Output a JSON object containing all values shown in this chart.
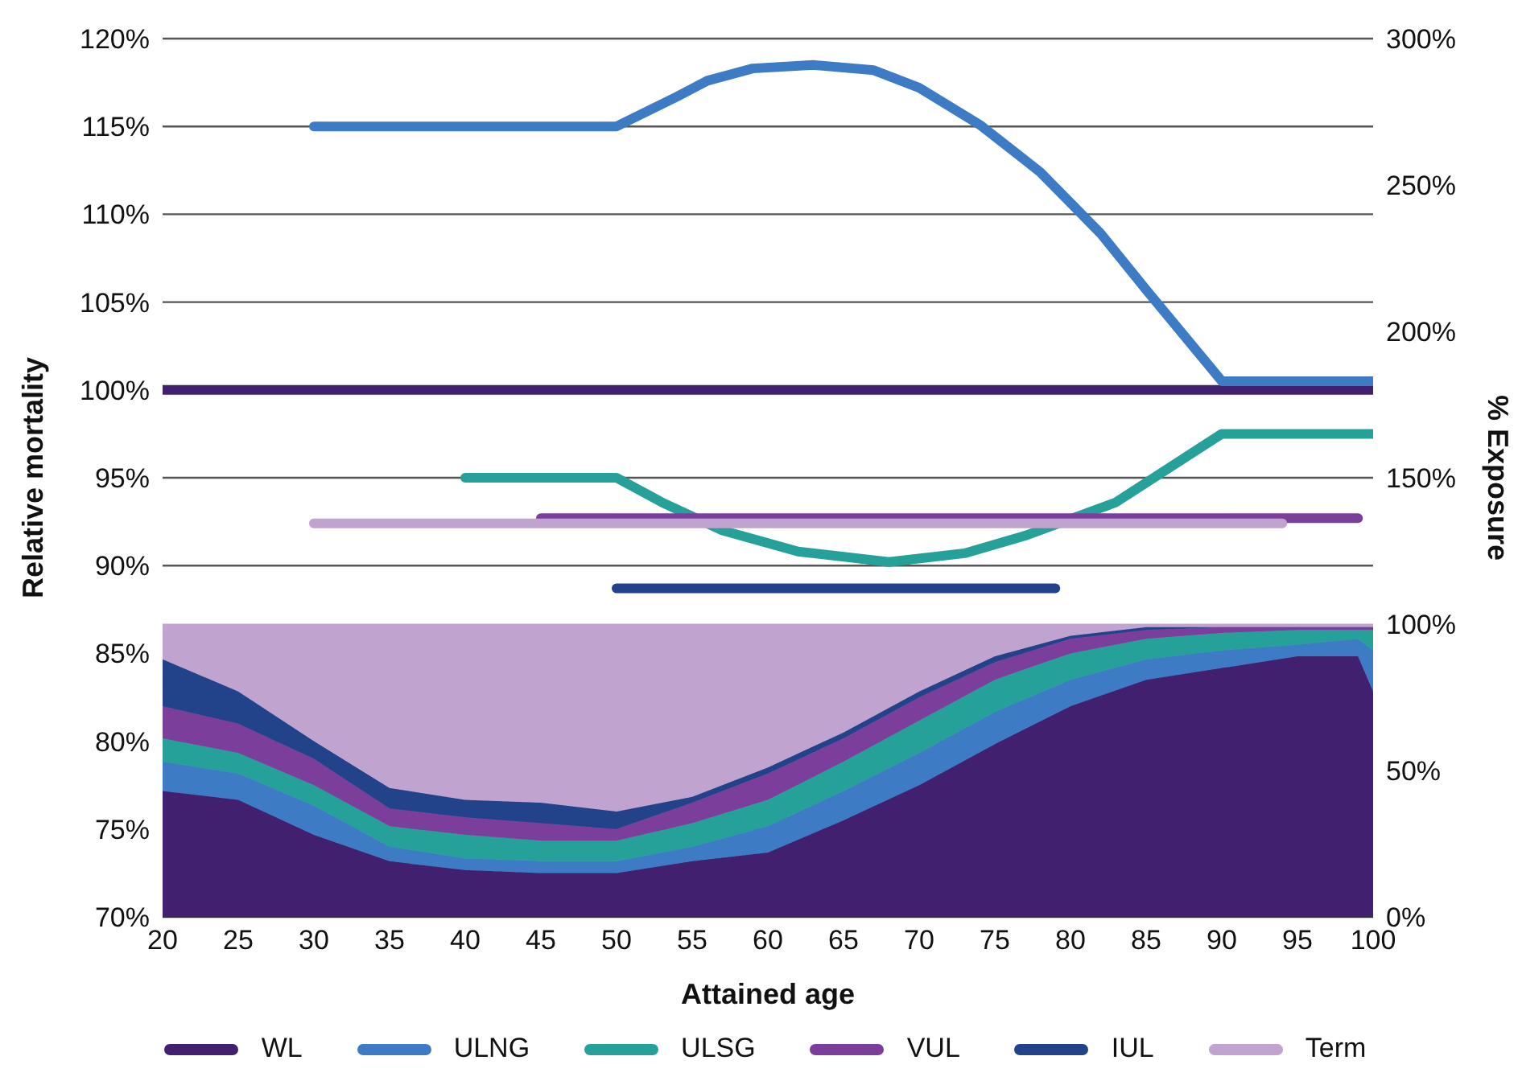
{
  "chart_data": {
    "type": "line",
    "xlabel": "Attained age",
    "ylabel": "Relative mortality",
    "y2label": "% Exposure",
    "x": [
      20,
      25,
      30,
      35,
      40,
      45,
      50,
      55,
      60,
      65,
      70,
      75,
      80,
      85,
      90,
      95,
      99,
      100
    ],
    "xlim": [
      20,
      100
    ],
    "xticks": [
      20,
      25,
      30,
      35,
      40,
      45,
      50,
      55,
      60,
      65,
      70,
      75,
      80,
      85,
      90,
      95,
      100
    ],
    "ylim": [
      70,
      120
    ],
    "yticks": [
      {
        "value": 70,
        "label": "70%"
      },
      {
        "value": 75,
        "label": "75%"
      },
      {
        "value": 80,
        "label": "80%"
      },
      {
        "value": 85,
        "label": "85%"
      },
      {
        "value": 90,
        "label": "90%"
      },
      {
        "value": 95,
        "label": "95%"
      },
      {
        "value": 100,
        "label": "100%"
      },
      {
        "value": 105,
        "label": "105%"
      },
      {
        "value": 110,
        "label": "110%"
      },
      {
        "value": 115,
        "label": "115%"
      },
      {
        "value": 120,
        "label": "120%"
      }
    ],
    "y2lim": [
      0,
      300
    ],
    "y2ticks": [
      {
        "value": 0,
        "label": "0%"
      },
      {
        "value": 50,
        "label": "50%"
      },
      {
        "value": 100,
        "label": "100%"
      },
      {
        "value": 150,
        "label": "150%"
      },
      {
        "value": 200,
        "label": "200%"
      },
      {
        "value": 250,
        "label": "250%"
      },
      {
        "value": 300,
        "label": "300%"
      }
    ],
    "stacked": true,
    "grid": "y",
    "legend": "bottom",
    "marker": "none",
    "line_style": "solid",
    "series": [
      {
        "type": "area",
        "axis": "y2",
        "color": "#41206f",
        "values": [
          43,
          40,
          28,
          19,
          16,
          15,
          15,
          19,
          22,
          33,
          45,
          59,
          72,
          81,
          85,
          89,
          89,
          77
        ]
      },
      {
        "type": "area",
        "axis": "y2",
        "color": "#3d7cc4",
        "values": [
          10,
          9,
          10,
          5,
          4,
          4,
          4,
          5,
          9,
          10,
          11,
          11,
          9,
          7,
          6,
          4,
          6,
          14
        ]
      },
      {
        "type": "area",
        "axis": "y2",
        "color": "#26a199",
        "values": [
          8,
          7,
          7,
          7,
          8,
          7,
          7,
          8,
          9,
          10,
          11,
          11,
          9,
          7,
          6,
          5,
          3,
          7
        ]
      },
      {
        "type": "area",
        "axis": "y2",
        "color": "#7b3f9b",
        "values": [
          11,
          10,
          9,
          6,
          6,
          6,
          4,
          7,
          9,
          8,
          8,
          6,
          5,
          3,
          2,
          1,
          1,
          1
        ]
      },
      {
        "type": "area",
        "axis": "y2",
        "color": "#22428a",
        "values": [
          16,
          11,
          6,
          7,
          6,
          7,
          6,
          2,
          2,
          2,
          2,
          2,
          1,
          1,
          0,
          0,
          0,
          0
        ]
      },
      {
        "type": "area",
        "axis": "y2",
        "color": "#c0a3cf",
        "values": [
          12,
          23,
          40,
          56,
          60,
          61,
          64,
          59,
          49,
          37,
          23,
          11,
          4,
          1,
          1,
          1,
          1,
          1
        ]
      },
      {
        "name": "WL",
        "color": "#41206f",
        "x": [
          20,
          100
        ],
        "values": [
          100,
          100
        ]
      },
      {
        "name": "ULNG",
        "color": "#3d7cc4",
        "x": [
          30,
          50,
          54,
          56,
          59,
          63,
          67,
          70,
          74,
          78,
          82,
          85,
          90,
          100
        ],
        "values": [
          115,
          115,
          116.7,
          117.6,
          118.3,
          118.5,
          118.2,
          117.2,
          115.1,
          112.4,
          108.9,
          105.7,
          100.5,
          100.5
        ]
      },
      {
        "name": "ULSG",
        "color": "#26a199",
        "x": [
          40,
          50,
          53,
          57,
          62,
          68,
          73,
          77,
          83,
          90,
          100
        ],
        "values": [
          95,
          95,
          93.6,
          92,
          90.8,
          90.2,
          90.7,
          91.7,
          93.6,
          97.5,
          97.5
        ]
      },
      {
        "name": "VUL",
        "color": "#7b3f9b",
        "x": [
          45,
          99
        ],
        "values": [
          92.7,
          92.7
        ]
      },
      {
        "name": "IUL",
        "color": "#22428a",
        "x": [
          50,
          79
        ],
        "values": [
          88.7,
          88.7
        ]
      },
      {
        "name": "Term",
        "color": "#c0a3cf",
        "x": [
          30,
          94
        ],
        "values": [
          92.4,
          92.4
        ]
      }
    ]
  }
}
